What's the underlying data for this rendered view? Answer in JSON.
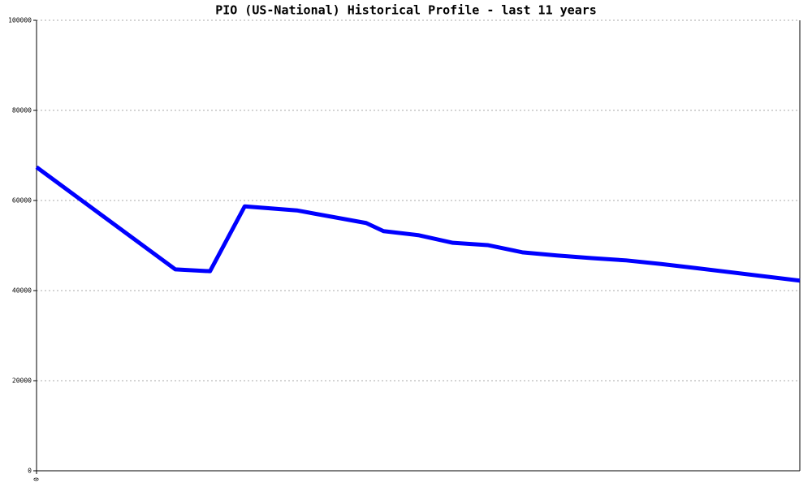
{
  "chart_data": {
    "type": "line",
    "title": "PIO (US-National) Historical Profile - last 11 years",
    "x": [
      0,
      4,
      5,
      6,
      7.5,
      9.5,
      10,
      11,
      12,
      13,
      14,
      15,
      16,
      17,
      18,
      19,
      22
    ],
    "series": [
      {
        "color": "#0000ff",
        "values": [
          67400,
          44700,
          44300,
          58700,
          57800,
          55000,
          53200,
          52300,
          50600,
          50100,
          48500,
          47800,
          47200,
          46700,
          45900,
          45000,
          42200
        ]
      }
    ],
    "xlim": [
      0,
      22
    ],
    "xticks": [
      0
    ],
    "ylim": [
      0,
      100000
    ],
    "yticks": [
      0,
      20000,
      40000,
      60000,
      80000,
      100000
    ],
    "grid": true
  }
}
